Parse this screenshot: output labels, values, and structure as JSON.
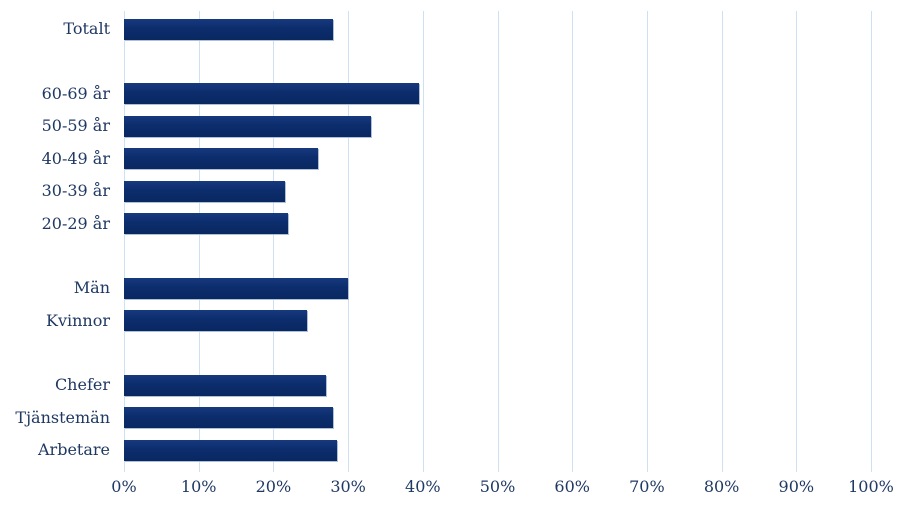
{
  "colors": {
    "bar_fill": "#0c2d6c",
    "bar_fill_top": "#17397e",
    "bar_fill_bottom": "#092862",
    "bar_shadow": "#aabcd6",
    "gridline": "#cfe0f3",
    "text": "#1f3864",
    "background": "#ffffff"
  },
  "chart_data": {
    "type": "bar",
    "orientation": "horizontal",
    "title": "",
    "xlabel": "",
    "ylabel": "",
    "unit": "%",
    "xlim": [
      0,
      100
    ],
    "grid": true,
    "legend": false,
    "x_tick_labels": [
      "0%",
      "10%",
      "20%",
      "30%",
      "40%",
      "50%",
      "60%",
      "70%",
      "80%",
      "90%",
      "100%"
    ],
    "x_tick_values": [
      0,
      10,
      20,
      30,
      40,
      50,
      60,
      70,
      80,
      90,
      100
    ],
    "groups": [
      {
        "categories": [
          "Totalt"
        ],
        "values": [
          28
        ]
      },
      {
        "categories": [
          "60-69 år",
          "50-59 år",
          "40-49 år",
          "30-39 år",
          "20-29 år"
        ],
        "values": [
          39.5,
          33,
          26,
          21.5,
          22
        ]
      },
      {
        "categories": [
          "Män",
          "Kvinnor"
        ],
        "values": [
          30,
          24.5
        ]
      },
      {
        "categories": [
          "Chefer",
          "Tjänstemän",
          "Arbetare"
        ],
        "values": [
          27,
          28,
          28.5
        ]
      }
    ],
    "categories": [
      "Totalt",
      "60-69 år",
      "50-59 år",
      "40-49 år",
      "30-39 år",
      "20-29 år",
      "Män",
      "Kvinnor",
      "Chefer",
      "Tjänstemän",
      "Arbetare"
    ],
    "values": [
      28,
      39.5,
      33,
      26,
      21.5,
      22,
      30,
      24.5,
      27,
      28,
      28.5
    ]
  }
}
